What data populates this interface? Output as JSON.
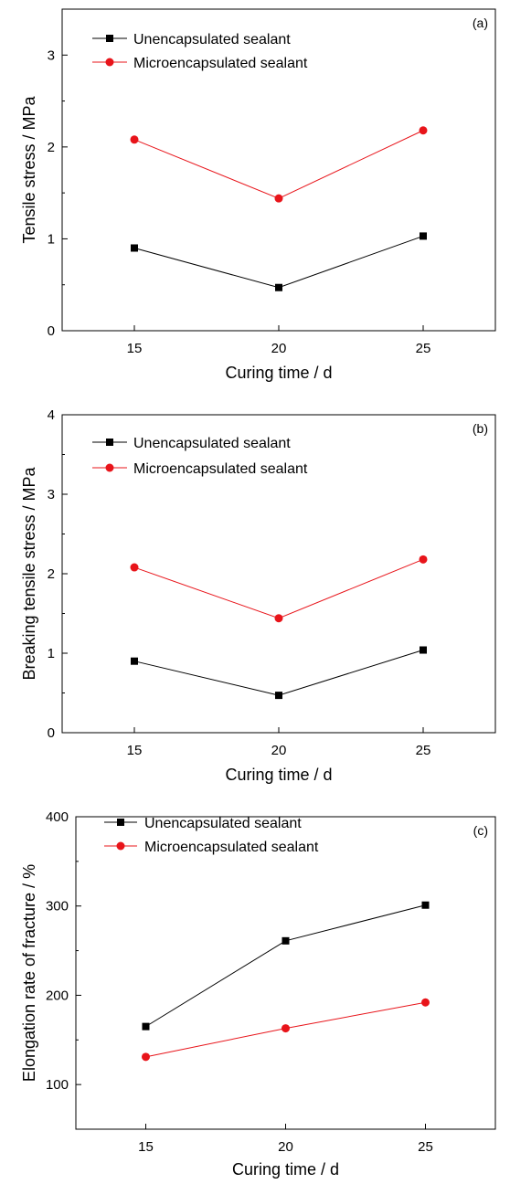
{
  "chart_data": [
    {
      "type": "line",
      "panel_label": "(a)",
      "xlabel": "Curing time / d",
      "ylabel": "Tensile stress / MPa",
      "x": [
        15,
        20,
        25
      ],
      "xlim": [
        12.5,
        27.5
      ],
      "ylim": [
        0,
        3.5
      ],
      "xticks": [
        "15",
        "20",
        "25"
      ],
      "yticks": [
        "0",
        "1",
        "2",
        "3"
      ],
      "legend_position": "top-left",
      "series": [
        {
          "name": "Unencapsulated sealant",
          "values": [
            0.9,
            0.47,
            1.03
          ],
          "color": "#000000",
          "marker": "square"
        },
        {
          "name": "Microencapsulated sealant",
          "values": [
            2.08,
            1.44,
            2.18
          ],
          "color": "#e8141a",
          "marker": "circle"
        }
      ]
    },
    {
      "type": "line",
      "panel_label": "(b)",
      "xlabel": "Curing time / d",
      "ylabel": "Breaking tensile stress / MPa",
      "x": [
        15,
        20,
        25
      ],
      "xlim": [
        12.5,
        27.5
      ],
      "ylim": [
        0,
        4
      ],
      "xticks": [
        "15",
        "20",
        "25"
      ],
      "yticks": [
        "0",
        "1",
        "2",
        "3",
        "4"
      ],
      "legend_position": "top-left",
      "series": [
        {
          "name": "Unencapsulated sealant",
          "values": [
            0.9,
            0.47,
            1.04
          ],
          "color": "#000000",
          "marker": "square"
        },
        {
          "name": "Microencapsulated sealant",
          "values": [
            2.08,
            1.44,
            2.18
          ],
          "color": "#e8141a",
          "marker": "circle"
        }
      ]
    },
    {
      "type": "line",
      "panel_label": "(c)",
      "xlabel": "Curing time / d",
      "ylabel": "Elongation rate of fracture / %",
      "x": [
        15,
        20,
        25
      ],
      "xlim": [
        12.5,
        27.5
      ],
      "ylim": [
        50,
        400
      ],
      "xticks": [
        "15",
        "20",
        "25"
      ],
      "yticks": [
        "100",
        "200",
        "300",
        "400"
      ],
      "legend_position": "top-left",
      "series": [
        {
          "name": "Unencapsulated sealant",
          "values": [
            165,
            261,
            301
          ],
          "color": "#000000",
          "marker": "square"
        },
        {
          "name": "Microencapsulated sealant",
          "values": [
            131,
            163,
            192
          ],
          "color": "#e8141a",
          "marker": "circle"
        }
      ]
    }
  ]
}
